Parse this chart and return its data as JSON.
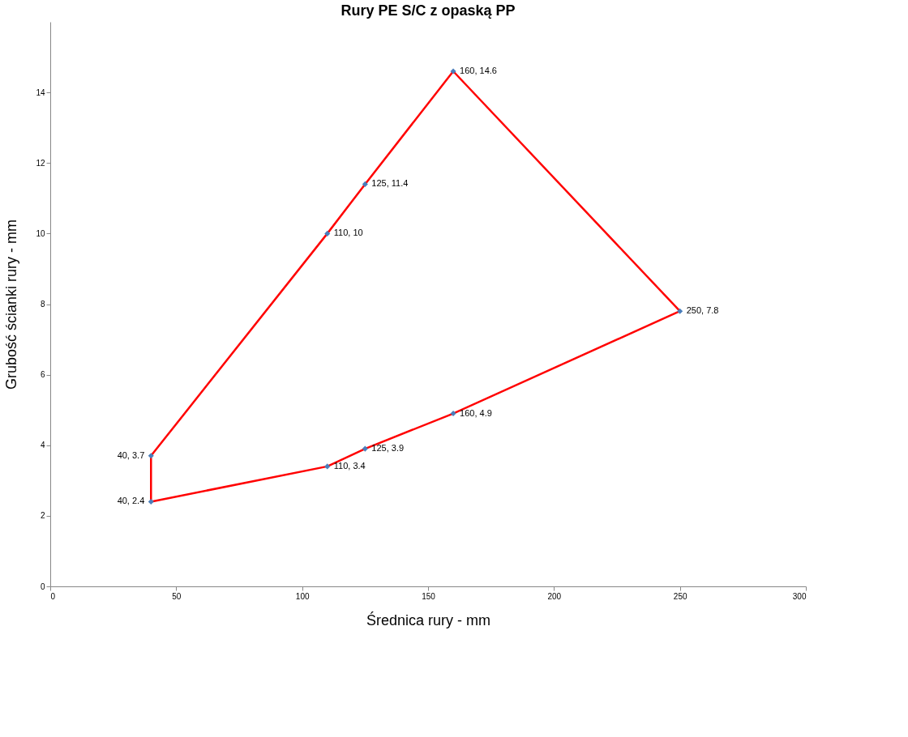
{
  "chart_data": {
    "type": "line",
    "title": "Rury PE S/C z opaską PP",
    "xlabel": "Średnica rury - mm",
    "ylabel": "Grubość ścianki rury - mm",
    "xlim": [
      0,
      300
    ],
    "xticks": [
      0,
      50,
      100,
      150,
      200,
      250,
      300
    ],
    "ylim": [
      0,
      16
    ],
    "yticks": [
      0,
      2,
      4,
      6,
      8,
      10,
      12,
      14
    ],
    "grid": false,
    "series": [
      {
        "color": "#ff0000",
        "marker": "none",
        "x": [
          40,
          40,
          110,
          125,
          160,
          250
        ],
        "values": [
          2.4,
          3.7,
          10,
          11.4,
          14.6,
          7.8
        ]
      },
      {
        "color": "#ff0000",
        "marker": "none",
        "x": [
          40,
          110,
          125,
          160,
          250
        ],
        "values": [
          2.4,
          3.4,
          3.9,
          4.9,
          7.8
        ]
      },
      {
        "type": "scatter",
        "color": "#4a7ebb",
        "marker": "diamond",
        "x": [
          40,
          40,
          110,
          125,
          160,
          250,
          160,
          125,
          110
        ],
        "values": [
          2.4,
          3.7,
          10,
          11.4,
          14.6,
          7.8,
          4.9,
          3.9,
          3.4
        ],
        "value_labels": [
          "40, 2.4",
          "40, 3.7",
          "110, 10",
          "125, 11.4",
          "160, 14.6",
          "250, 7.8",
          "160, 4.9",
          "125, 3.9",
          "110, 3.4"
        ]
      }
    ]
  }
}
